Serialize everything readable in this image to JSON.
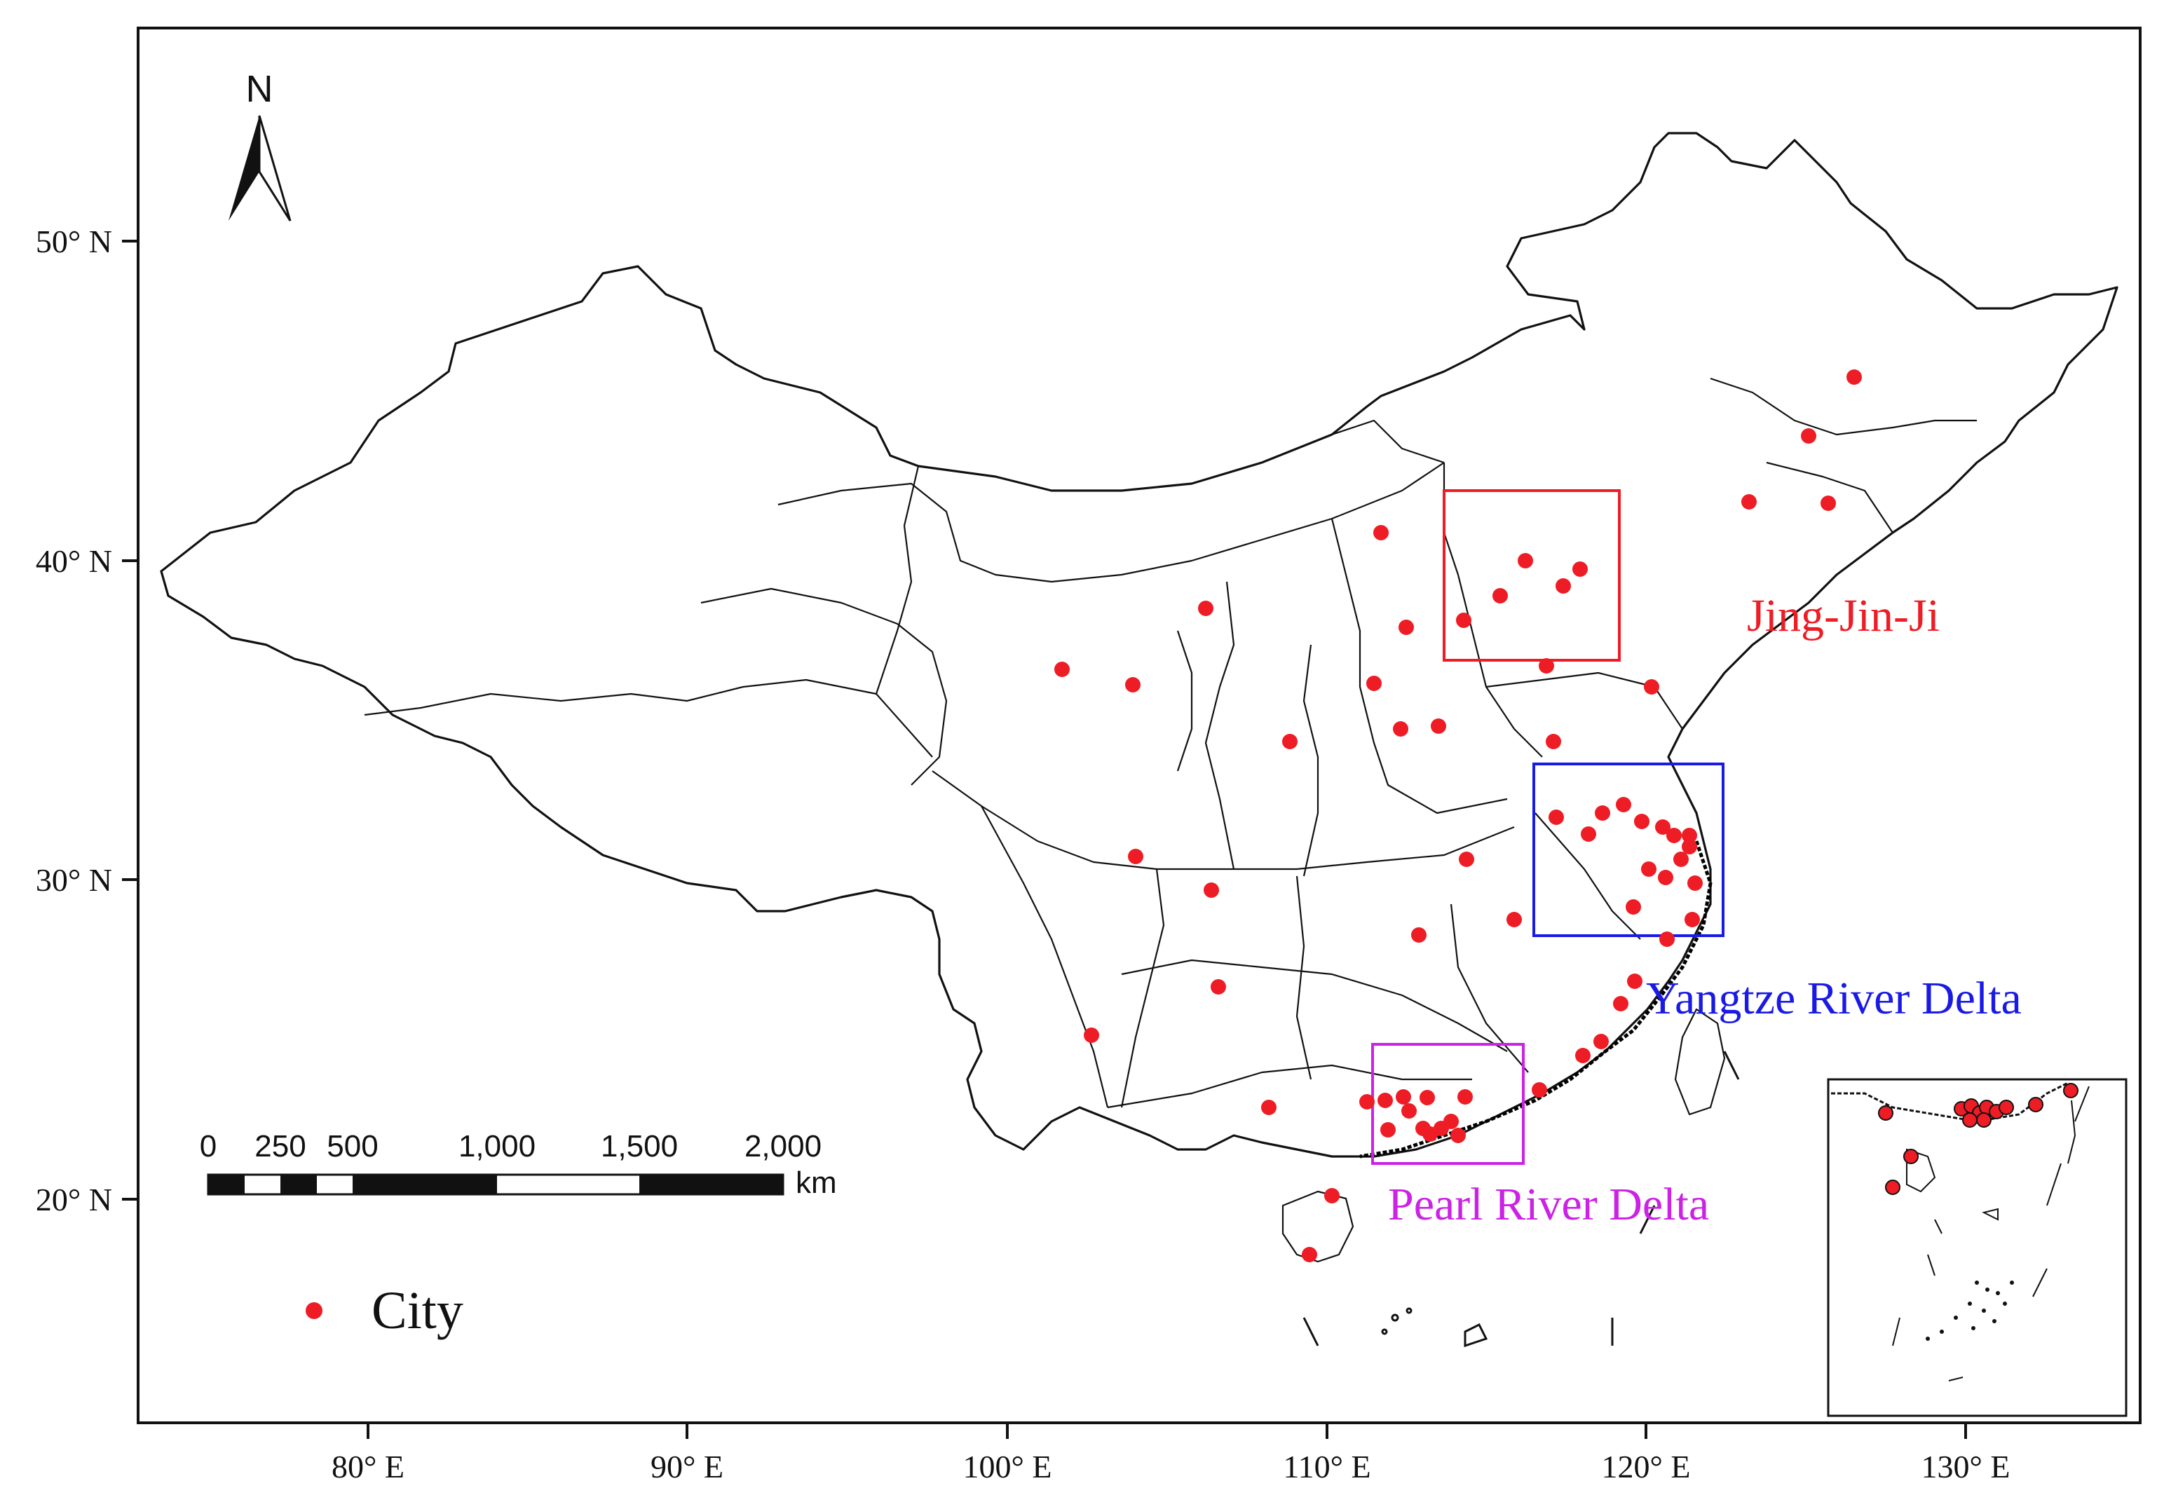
{
  "axes": {
    "x_ticks": [
      "80° E",
      "90° E",
      "100° E",
      "110° E",
      "120° E",
      "130° E"
    ],
    "y_ticks": [
      "50° N",
      "40° N",
      "30° N",
      "20° N"
    ]
  },
  "north_arrow": {
    "label": "N",
    "icon": "north-arrow-icon"
  },
  "scale_bar": {
    "ticks": [
      "0",
      "250",
      "500",
      "1,000",
      "1,500",
      "2,000"
    ],
    "unit": "km"
  },
  "legend": {
    "label": "City",
    "marker_color": "#ee1c25"
  },
  "regions": [
    {
      "label": "Jing-Jin-Ji",
      "color": "#ee1c25"
    },
    {
      "label": "Yangtze River Delta",
      "color": "#1a1ae6"
    },
    {
      "label": "Pearl River Delta",
      "color": "#cc22e6"
    }
  ],
  "colors": {
    "city": "#ee1c25",
    "boundary": "#111111"
  }
}
